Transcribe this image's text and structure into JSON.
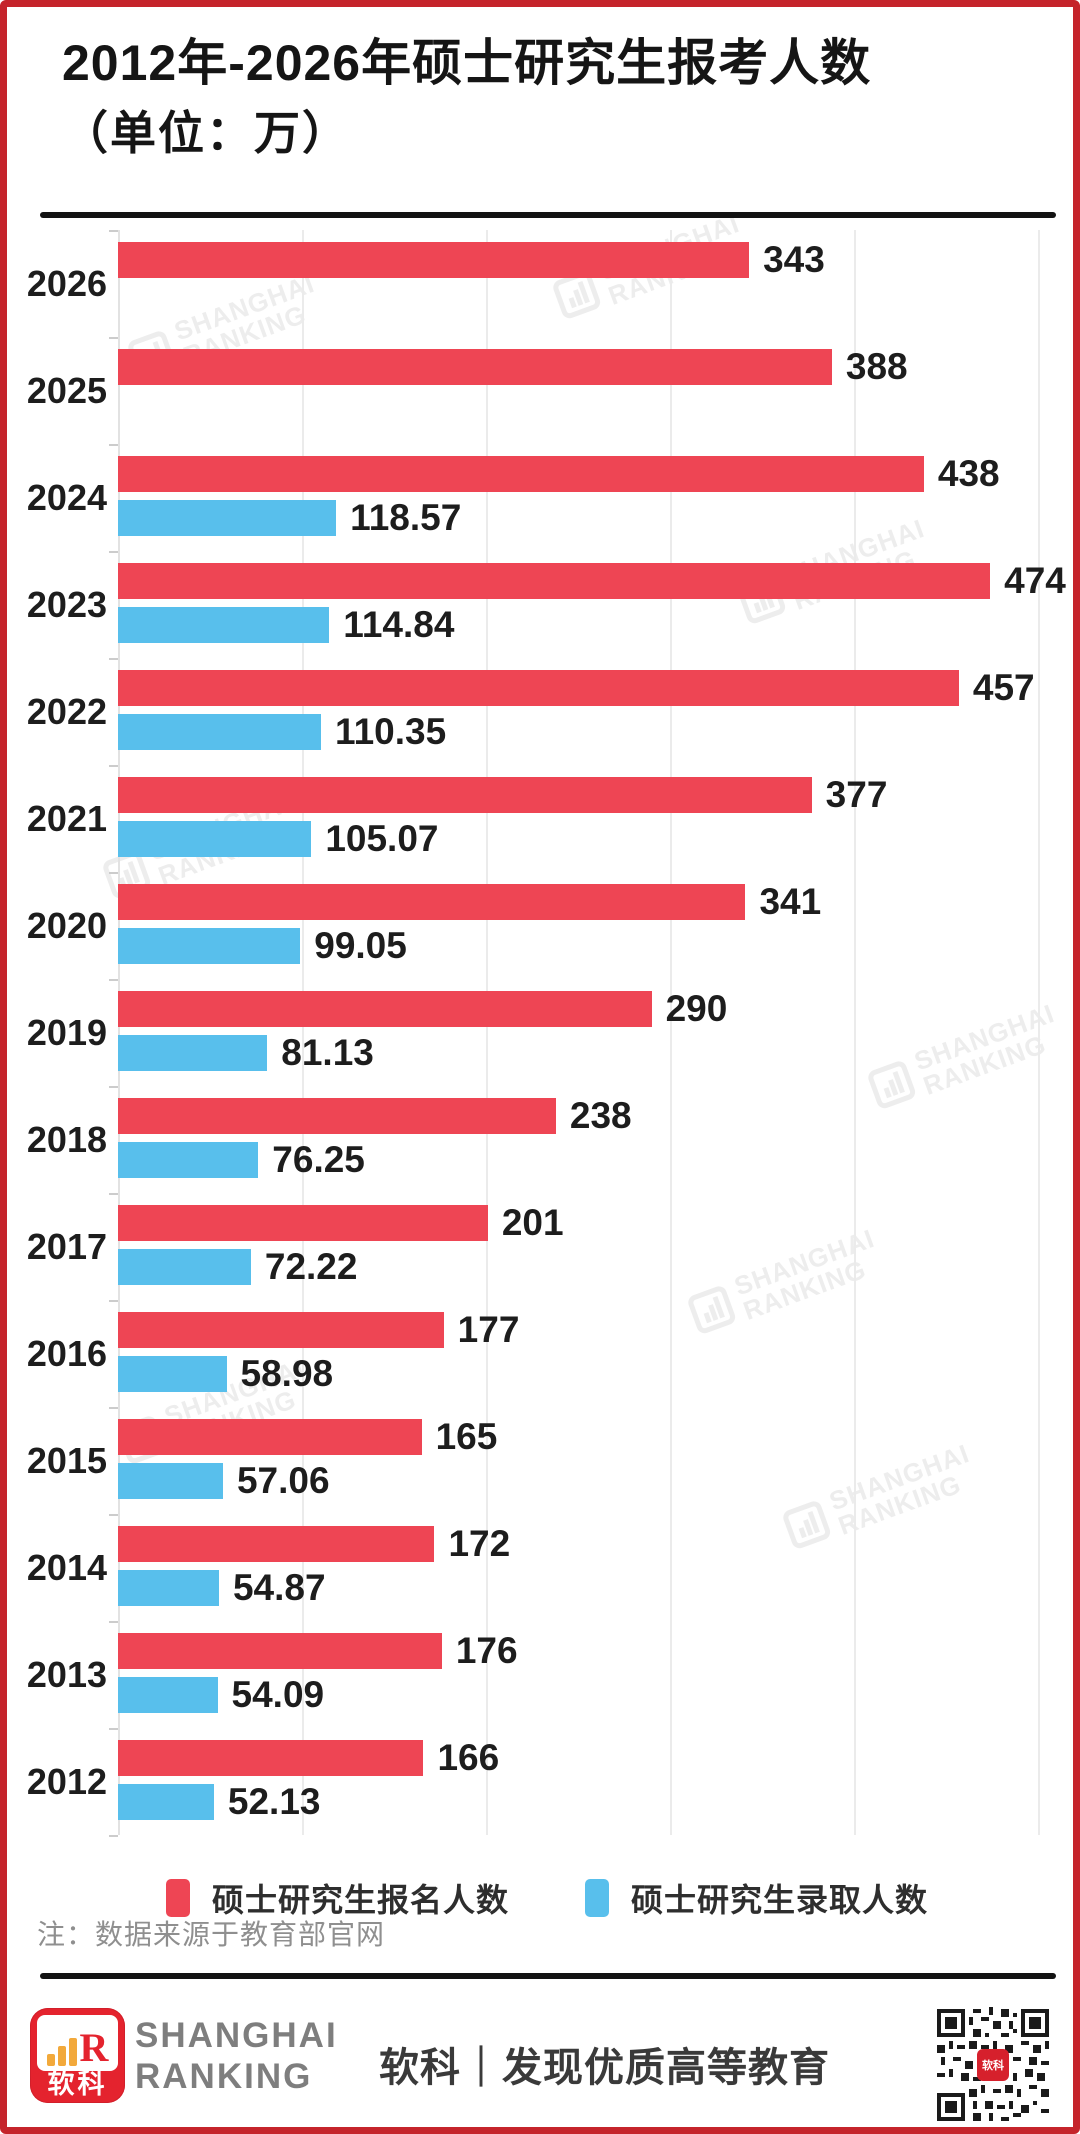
{
  "title": "2012年-2026年硕士研究生报考人数",
  "subtitle": "（单位：万）",
  "chart_data": {
    "type": "bar",
    "orientation": "horizontal",
    "unit": "万",
    "categories": [
      "2026",
      "2025",
      "2024",
      "2023",
      "2022",
      "2021",
      "2020",
      "2019",
      "2018",
      "2017",
      "2016",
      "2015",
      "2014",
      "2013",
      "2012"
    ],
    "series": [
      {
        "name": "硕士研究生报名人数",
        "color": "#ee4554",
        "values": [
          343,
          388,
          438,
          474,
          457,
          377,
          341,
          290,
          238,
          201,
          177,
          165,
          172,
          176,
          166
        ]
      },
      {
        "name": "硕士研究生录取人数",
        "color": "#58bfec",
        "values": [
          null,
          null,
          118.57,
          114.84,
          110.35,
          105.07,
          99.05,
          81.13,
          76.25,
          72.22,
          58.98,
          57.06,
          54.87,
          54.09,
          52.13
        ]
      }
    ],
    "xlim": [
      0,
      500
    ],
    "gridline_values": [
      100,
      200,
      300,
      400,
      500
    ],
    "grid": true,
    "legend_position": "bottom",
    "value_labels": true
  },
  "note": "注：数据来源于教育部官网",
  "watermark": {
    "lines": [
      "SHANGHAI",
      "RANKING"
    ]
  },
  "footer": {
    "logo_r": "R",
    "logo_cn": "软科",
    "brand_lines": [
      "SHANGHAI",
      "RANKING"
    ],
    "slogan": "软科｜发现优质高等教育",
    "qr_center": "软科"
  },
  "colors": {
    "border": "#c5242b",
    "bar_red": "#ee4554",
    "bar_blue": "#58bfec",
    "text": "#1d1d1d",
    "note": "#8f8f8f",
    "logo_red": "#e4232e"
  }
}
